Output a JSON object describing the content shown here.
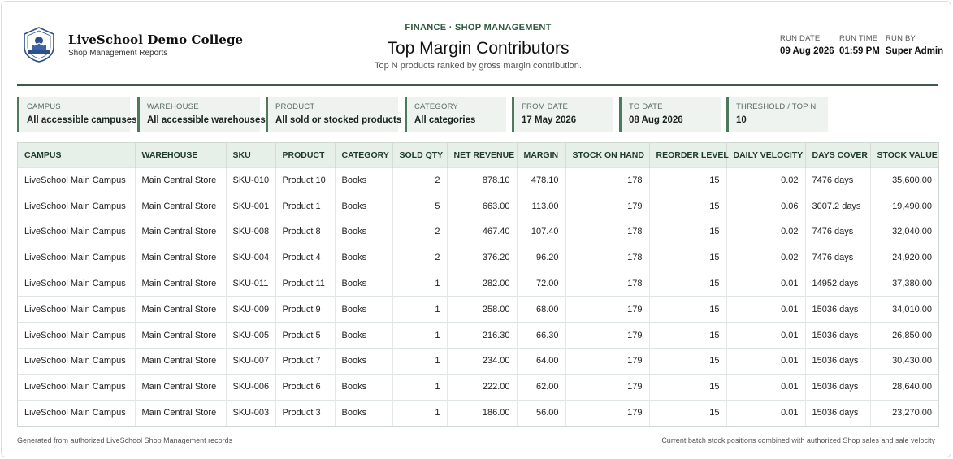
{
  "org": {
    "name": "LiveSchool Demo College",
    "subtitle": "Shop Management Reports",
    "logo_icon": "school-crest-icon"
  },
  "report": {
    "eyebrow": "FINANCE · SHOP MANAGEMENT",
    "title": "Top Margin Contributors",
    "subtitle": "Top N products ranked by gross margin contribution."
  },
  "run": {
    "date_label": "RUN DATE",
    "date": "09 Aug 2026",
    "time_label": "RUN TIME",
    "time": "01:59 PM",
    "by_label": "RUN BY",
    "by": "Super Admin"
  },
  "filters": [
    {
      "label": "CAMPUS",
      "value": "All accessible campuses"
    },
    {
      "label": "WAREHOUSE",
      "value": "All accessible warehouses"
    },
    {
      "label": "PRODUCT",
      "value": "All sold or stocked products"
    },
    {
      "label": "CATEGORY",
      "value": "All categories"
    },
    {
      "label": "FROM DATE",
      "value": "17 May 2026"
    },
    {
      "label": "TO DATE",
      "value": "08 Aug 2026"
    },
    {
      "label": "THRESHOLD / TOP N",
      "value": "10"
    }
  ],
  "table": {
    "columns": [
      "CAMPUS",
      "WAREHOUSE",
      "SKU",
      "PRODUCT",
      "CATEGORY",
      "SOLD QTY",
      "NET REVENUE",
      "MARGIN",
      "STOCK ON HAND",
      "REORDER LEVEL",
      "DAILY VELOCITY",
      "DAYS COVER",
      "STOCK VALUE"
    ],
    "rows": [
      [
        "LiveSchool Main Campus",
        "Main Central Store",
        "SKU-010",
        "Product 10",
        "Books",
        "2",
        "878.10",
        "478.10",
        "178",
        "15",
        "0.02",
        "7476 days",
        "35,600.00"
      ],
      [
        "LiveSchool Main Campus",
        "Main Central Store",
        "SKU-001",
        "Product 1",
        "Books",
        "5",
        "663.00",
        "113.00",
        "179",
        "15",
        "0.06",
        "3007.2 days",
        "19,490.00"
      ],
      [
        "LiveSchool Main Campus",
        "Main Central Store",
        "SKU-008",
        "Product 8",
        "Books",
        "2",
        "467.40",
        "107.40",
        "178",
        "15",
        "0.02",
        "7476 days",
        "32,040.00"
      ],
      [
        "LiveSchool Main Campus",
        "Main Central Store",
        "SKU-004",
        "Product 4",
        "Books",
        "2",
        "376.20",
        "96.20",
        "178",
        "15",
        "0.02",
        "7476 days",
        "24,920.00"
      ],
      [
        "LiveSchool Main Campus",
        "Main Central Store",
        "SKU-011",
        "Product 11",
        "Books",
        "1",
        "282.00",
        "72.00",
        "178",
        "15",
        "0.01",
        "14952 days",
        "37,380.00"
      ],
      [
        "LiveSchool Main Campus",
        "Main Central Store",
        "SKU-009",
        "Product 9",
        "Books",
        "1",
        "258.00",
        "68.00",
        "179",
        "15",
        "0.01",
        "15036 days",
        "34,010.00"
      ],
      [
        "LiveSchool Main Campus",
        "Main Central Store",
        "SKU-005",
        "Product 5",
        "Books",
        "1",
        "216.30",
        "66.30",
        "179",
        "15",
        "0.01",
        "15036 days",
        "26,850.00"
      ],
      [
        "LiveSchool Main Campus",
        "Main Central Store",
        "SKU-007",
        "Product 7",
        "Books",
        "1",
        "234.00",
        "64.00",
        "179",
        "15",
        "0.01",
        "15036 days",
        "30,430.00"
      ],
      [
        "LiveSchool Main Campus",
        "Main Central Store",
        "SKU-006",
        "Product 6",
        "Books",
        "1",
        "222.00",
        "62.00",
        "179",
        "15",
        "0.01",
        "15036 days",
        "28,640.00"
      ],
      [
        "LiveSchool Main Campus",
        "Main Central Store",
        "SKU-003",
        "Product 3",
        "Books",
        "1",
        "186.00",
        "56.00",
        "179",
        "15",
        "0.01",
        "15036 days",
        "23,270.00"
      ]
    ]
  },
  "footer": {
    "left": "Generated from authorized LiveSchool Shop Management records",
    "right": "Current batch stock positions combined with authorized Shop sales and sale velocity"
  },
  "colors": {
    "accent": "#2e5a3e",
    "rule": "#3d5a48",
    "filter_bg": "#eef3ef",
    "header_bg": "#e7efe9"
  }
}
